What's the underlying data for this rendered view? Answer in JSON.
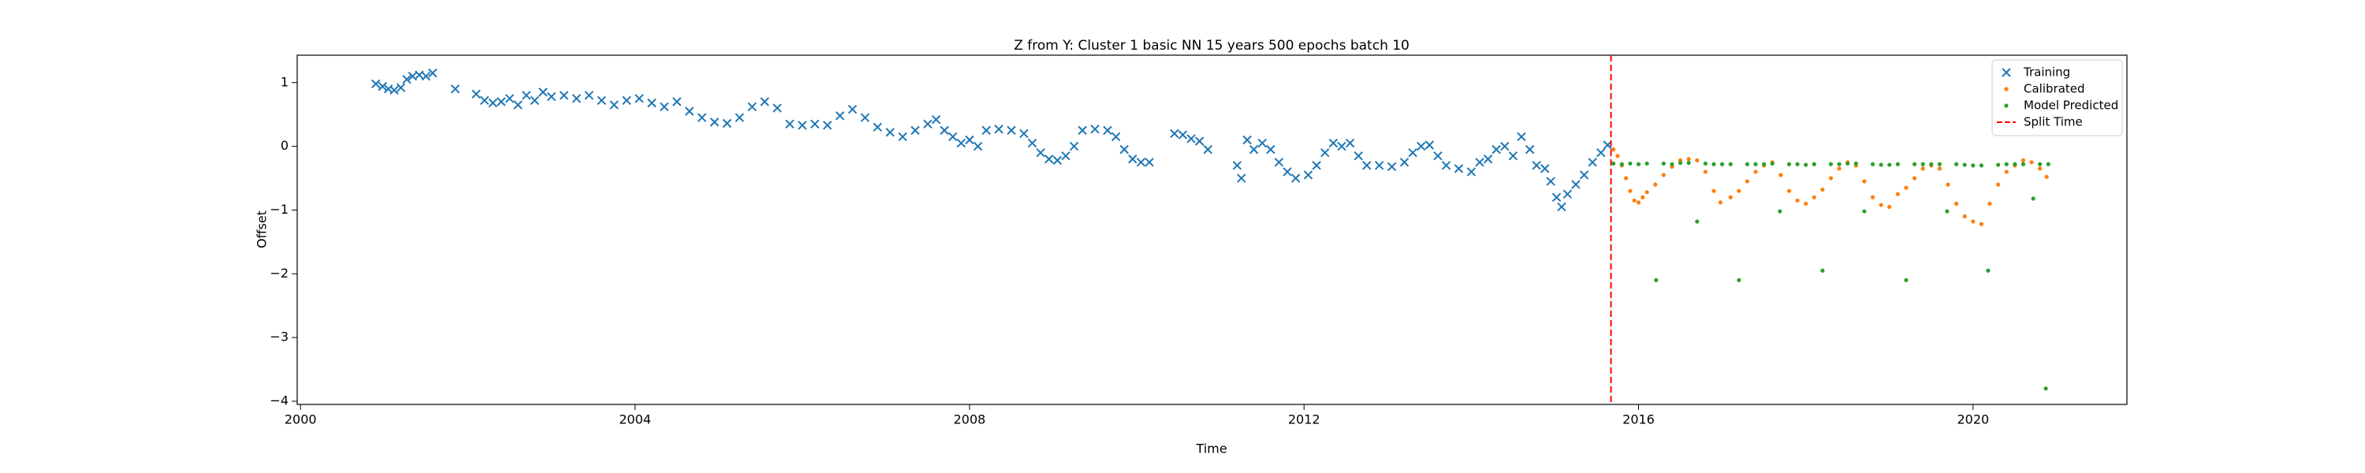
{
  "chart_data": {
    "type": "scatter",
    "title": "Z from Y: Cluster 1 basic NN 15 years 500 epochs batch 10",
    "xlabel": "Time",
    "ylabel": "Offset",
    "xlim": [
      1999.96,
      2021.84
    ],
    "ylim": [
      -4.05,
      1.43
    ],
    "xticks": [
      2000,
      2004,
      2008,
      2012,
      2016,
      2020
    ],
    "yticks": [
      {
        "value": -4,
        "label": "−4"
      },
      {
        "value": -3,
        "label": "−3"
      },
      {
        "value": -2,
        "label": "−2"
      },
      {
        "value": -1,
        "label": "−1"
      },
      0,
      1
    ],
    "legend": "upper right",
    "series": [
      {
        "name": "Training",
        "color": "#1f77b4",
        "marker": "x",
        "x": [
          2000.9,
          2000.98,
          2001.05,
          2001.12,
          2001.2,
          2001.27,
          2001.34,
          2001.42,
          2001.5,
          2001.58,
          2001.85,
          2002.1,
          2002.2,
          2002.3,
          2002.4,
          2002.5,
          2002.6,
          2002.7,
          2002.8,
          2002.9,
          2003.0,
          2003.15,
          2003.3,
          2003.45,
          2003.6,
          2003.75,
          2003.9,
          2004.05,
          2004.2,
          2004.35,
          2004.5,
          2004.65,
          2004.8,
          2004.95,
          2005.1,
          2005.25,
          2005.4,
          2005.55,
          2005.7,
          2005.85,
          2006.0,
          2006.15,
          2006.3,
          2006.45,
          2006.6,
          2006.75,
          2006.9,
          2007.05,
          2007.2,
          2007.35,
          2007.5,
          2007.6,
          2007.7,
          2007.8,
          2007.9,
          2008.0,
          2008.1,
          2008.2,
          2008.35,
          2008.5,
          2008.65,
          2008.75,
          2008.85,
          2008.95,
          2009.05,
          2009.15,
          2009.25,
          2009.35,
          2009.5,
          2009.65,
          2009.75,
          2009.85,
          2009.95,
          2010.05,
          2010.15,
          2010.45,
          2010.55,
          2010.65,
          2010.75,
          2010.85,
          2011.2,
          2011.25,
          2011.32,
          2011.4,
          2011.5,
          2011.6,
          2011.7,
          2011.8,
          2011.9,
          2012.05,
          2012.15,
          2012.25,
          2012.35,
          2012.45,
          2012.55,
          2012.65,
          2012.75,
          2012.9,
          2013.05,
          2013.2,
          2013.3,
          2013.4,
          2013.5,
          2013.6,
          2013.7,
          2013.85,
          2014.0,
          2014.1,
          2014.2,
          2014.3,
          2014.4,
          2014.5,
          2014.6,
          2014.7,
          2014.78,
          2014.88,
          2014.95,
          2015.02,
          2015.08,
          2015.15,
          2015.25,
          2015.35,
          2015.45,
          2015.55,
          2015.63
        ],
        "values": [
          0.98,
          0.94,
          0.9,
          0.88,
          0.92,
          1.05,
          1.1,
          1.12,
          1.1,
          1.15,
          0.9,
          0.82,
          0.72,
          0.68,
          0.7,
          0.75,
          0.65,
          0.8,
          0.72,
          0.85,
          0.78,
          0.8,
          0.75,
          0.8,
          0.72,
          0.65,
          0.72,
          0.75,
          0.68,
          0.62,
          0.7,
          0.55,
          0.45,
          0.38,
          0.36,
          0.45,
          0.62,
          0.7,
          0.6,
          0.35,
          0.33,
          0.35,
          0.33,
          0.48,
          0.58,
          0.45,
          0.3,
          0.22,
          0.15,
          0.25,
          0.35,
          0.42,
          0.25,
          0.15,
          0.05,
          0.1,
          0.0,
          0.25,
          0.27,
          0.25,
          0.2,
          0.05,
          -0.1,
          -0.2,
          -0.22,
          -0.15,
          0.0,
          0.25,
          0.27,
          0.25,
          0.15,
          -0.05,
          -0.2,
          -0.25,
          -0.25,
          0.2,
          0.18,
          0.12,
          0.08,
          -0.05,
          -0.3,
          -0.5,
          0.1,
          -0.05,
          0.05,
          -0.05,
          -0.25,
          -0.4,
          -0.5,
          -0.45,
          -0.3,
          -0.1,
          0.05,
          0.0,
          0.05,
          -0.15,
          -0.3,
          -0.3,
          -0.32,
          -0.25,
          -0.1,
          0.0,
          0.02,
          -0.15,
          -0.3,
          -0.35,
          -0.4,
          -0.25,
          -0.2,
          -0.05,
          0.0,
          -0.15,
          0.15,
          -0.05,
          -0.3,
          -0.35,
          -0.55,
          -0.8,
          -0.95,
          -0.75,
          -0.6,
          -0.45,
          -0.25,
          -0.1,
          0.02
        ]
      },
      {
        "name": "Calibrated",
        "color": "#ff7f0e",
        "marker": "dot",
        "x": [
          2015.7,
          2015.75,
          2015.8,
          2015.85,
          2015.9,
          2015.95,
          2016.0,
          2016.05,
          2016.1,
          2016.2,
          2016.3,
          2016.4,
          2016.5,
          2016.6,
          2016.7,
          2016.8,
          2016.9,
          2016.98,
          2017.1,
          2017.2,
          2017.3,
          2017.4,
          2017.5,
          2017.6,
          2017.7,
          2017.8,
          2017.9,
          2018.0,
          2018.1,
          2018.2,
          2018.3,
          2018.4,
          2018.5,
          2018.6,
          2018.7,
          2018.8,
          2018.9,
          2019.0,
          2019.1,
          2019.2,
          2019.3,
          2019.4,
          2019.5,
          2019.6,
          2019.7,
          2019.8,
          2019.9,
          2020.0,
          2020.1,
          2020.2,
          2020.3,
          2020.4,
          2020.5,
          2020.6,
          2020.7,
          2020.8,
          2020.88
        ],
        "values": [
          -0.05,
          -0.15,
          -0.3,
          -0.5,
          -0.7,
          -0.85,
          -0.88,
          -0.8,
          -0.72,
          -0.6,
          -0.45,
          -0.32,
          -0.22,
          -0.2,
          -0.22,
          -0.4,
          -0.7,
          -0.88,
          -0.8,
          -0.7,
          -0.55,
          -0.4,
          -0.3,
          -0.25,
          -0.45,
          -0.7,
          -0.85,
          -0.9,
          -0.8,
          -0.68,
          -0.5,
          -0.35,
          -0.25,
          -0.3,
          -0.55,
          -0.8,
          -0.92,
          -0.95,
          -0.75,
          -0.65,
          -0.5,
          -0.35,
          -0.3,
          -0.35,
          -0.6,
          -0.9,
          -1.1,
          -1.18,
          -1.22,
          -0.9,
          -0.6,
          -0.4,
          -0.3,
          -0.22,
          -0.25,
          -0.35,
          -0.48
        ]
      },
      {
        "name": "Model Predicted",
        "color": "#2ca02c",
        "marker": "dot",
        "x": [
          2015.7,
          2015.8,
          2015.9,
          2016.0,
          2016.1,
          2016.21,
          2016.3,
          2016.4,
          2016.5,
          2016.6,
          2016.7,
          2016.8,
          2016.9,
          2017.0,
          2017.1,
          2017.2,
          2017.3,
          2017.4,
          2017.5,
          2017.6,
          2017.69,
          2017.8,
          2017.9,
          2018.0,
          2018.1,
          2018.2,
          2018.3,
          2018.4,
          2018.5,
          2018.6,
          2018.7,
          2018.8,
          2018.9,
          2019.0,
          2019.1,
          2019.2,
          2019.3,
          2019.4,
          2019.5,
          2019.6,
          2019.69,
          2019.8,
          2019.9,
          2020.0,
          2020.1,
          2020.18,
          2020.3,
          2020.4,
          2020.5,
          2020.6,
          2020.72,
          2020.8,
          2020.87,
          2020.9
        ],
        "values": [
          -0.27,
          -0.28,
          -0.27,
          -0.28,
          -0.27,
          -2.1,
          -0.27,
          -0.28,
          -0.26,
          -0.26,
          -1.18,
          -0.27,
          -0.28,
          -0.28,
          -0.28,
          -2.1,
          -0.28,
          -0.28,
          -0.28,
          -0.27,
          -1.02,
          -0.28,
          -0.28,
          -0.29,
          -0.28,
          -1.95,
          -0.28,
          -0.28,
          -0.27,
          -0.27,
          -1.02,
          -0.28,
          -0.29,
          -0.29,
          -0.28,
          -2.1,
          -0.28,
          -0.28,
          -0.28,
          -0.28,
          -1.02,
          -0.28,
          -0.29,
          -0.3,
          -0.3,
          -1.95,
          -0.29,
          -0.28,
          -0.28,
          -0.28,
          -0.82,
          -0.28,
          -3.8,
          -0.28
        ]
      }
    ],
    "vlines": [
      {
        "name": "Split Time",
        "x": 2015.67,
        "color": "#ff0000",
        "style": "dashed"
      }
    ]
  }
}
